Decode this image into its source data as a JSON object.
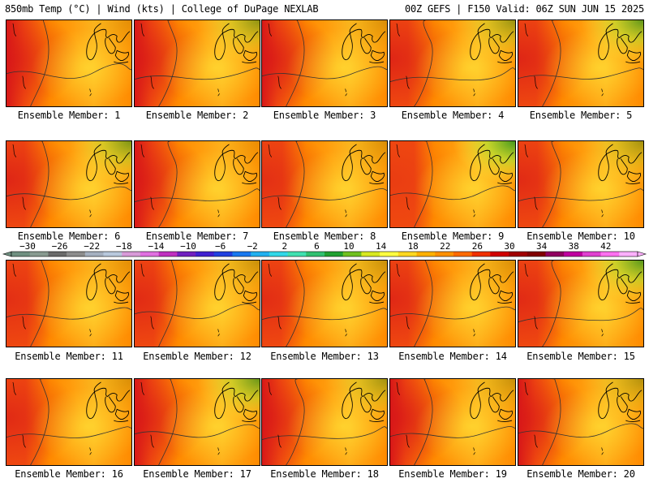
{
  "header": {
    "left": "850mb Temp (°C) | Wind (kts) | College of DuPage NEXLAB",
    "right": "00Z GEFS | F150 Valid: 06Z SUN JUN 15 2025"
  },
  "member_label_prefix": "Ensemble Member: ",
  "members": [
    {
      "id": "1",
      "label": "Ensemble Member: 1",
      "hot": 0.85,
      "green": 0.15
    },
    {
      "id": "2",
      "label": "Ensemble Member: 2",
      "hot": 0.9,
      "green": 0.6
    },
    {
      "id": "3",
      "label": "Ensemble Member: 3",
      "hot": 1.0,
      "green": 0.2
    },
    {
      "id": "4",
      "label": "Ensemble Member: 4",
      "hot": 0.8,
      "green": 0.55
    },
    {
      "id": "5",
      "label": "Ensemble Member: 5",
      "hot": 0.8,
      "green": 0.85
    },
    {
      "id": "6",
      "label": "Ensemble Member: 6",
      "hot": 0.8,
      "green": 0.7
    },
    {
      "id": "7",
      "label": "Ensemble Member: 7",
      "hot": 0.85,
      "green": 0.1
    },
    {
      "id": "8",
      "label": "Ensemble Member: 8",
      "hot": 0.6,
      "green": 0.2
    },
    {
      "id": "9",
      "label": "Ensemble Member: 9",
      "hot": 0.3,
      "green": 1.0
    },
    {
      "id": "10",
      "label": "Ensemble Member: 10",
      "hot": 0.7,
      "green": 0.5
    },
    {
      "id": "11",
      "label": "Ensemble Member: 11",
      "hot": 0.6,
      "green": 0.15
    },
    {
      "id": "12",
      "label": "Ensemble Member: 12",
      "hot": 0.7,
      "green": 0.3
    },
    {
      "id": "13",
      "label": "Ensemble Member: 13",
      "hot": 0.65,
      "green": 0.3
    },
    {
      "id": "14",
      "label": "Ensemble Member: 14",
      "hot": 0.75,
      "green": 0.2
    },
    {
      "id": "15",
      "label": "Ensemble Member: 15",
      "hot": 0.7,
      "green": 0.9
    },
    {
      "id": "16",
      "label": "Ensemble Member: 16",
      "hot": 0.7,
      "green": 0.2
    },
    {
      "id": "17",
      "label": "Ensemble Member: 17",
      "hot": 0.9,
      "green": 0.8
    },
    {
      "id": "18",
      "label": "Ensemble Member: 18",
      "hot": 0.85,
      "green": 0.5
    },
    {
      "id": "19",
      "label": "Ensemble Member: 19",
      "hot": 1.0,
      "green": 0.3
    },
    {
      "id": "20",
      "label": "Ensemble Member: 20",
      "hot": 0.9,
      "green": 0.4
    }
  ],
  "colorbar": {
    "tick_labels": [
      "−30",
      "−26",
      "−22",
      "−18",
      "−14",
      "−10",
      "−6",
      "−2",
      "2",
      "6",
      "10",
      "14",
      "18",
      "22",
      "26",
      "30",
      "34",
      "38",
      "42"
    ],
    "colors": [
      "#6f8f80",
      "#889a90",
      "#6a6a6a",
      "#8c8c8c",
      "#a5b0c0",
      "#b8c8dc",
      "#d89ad8",
      "#e070e0",
      "#c030c0",
      "#7020c0",
      "#4020d0",
      "#2040e0",
      "#1878f0",
      "#20b0f0",
      "#30d8e8",
      "#40e0b0",
      "#30c070",
      "#20a030",
      "#70c020",
      "#d8e820",
      "#ffff40",
      "#ffd820",
      "#ffb000",
      "#ff9000",
      "#ff6a00",
      "#f03000",
      "#d00000",
      "#a00000",
      "#800000",
      "#900060",
      "#c000a0",
      "#e040d0",
      "#ff70f0",
      "#ffb0ff"
    ]
  },
  "palette": {
    "hot": "#d81818",
    "red_orange": "#f04a10",
    "orange": "#ff8a00",
    "orange_light": "#ffae1a",
    "yellow": "#fff240",
    "yellow_green": "#b8e030",
    "green": "#3a9a20"
  }
}
